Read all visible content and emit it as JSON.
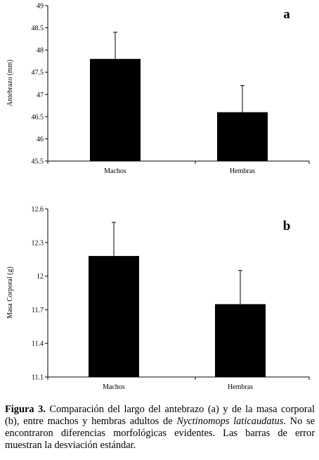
{
  "chart_data": [
    {
      "type": "bar",
      "panel_label": "a",
      "categories": [
        "Machos",
        "Hembras"
      ],
      "values": [
        47.8,
        46.6
      ],
      "error": [
        0.6,
        0.6
      ],
      "ylabel": "Antebrazo (mm)",
      "ylim": [
        45.5,
        49
      ],
      "yticks": [
        "45.5",
        "46",
        "46.5",
        "47",
        "47.5",
        "48",
        "48.5",
        "49"
      ],
      "grid": false,
      "bar_color": "#000000"
    },
    {
      "type": "bar",
      "panel_label": "b",
      "categories": [
        "Machos",
        "Hembras"
      ],
      "values": [
        12.18,
        11.75
      ],
      "error": [
        0.3,
        0.3
      ],
      "ylabel": "Masa Corporal (g)",
      "ylim": [
        11.1,
        12.6
      ],
      "yticks": [
        "11.1",
        "11.4",
        "11.7",
        "12",
        "12.3",
        "12.6"
      ],
      "grid": false,
      "bar_color": "#000000"
    }
  ],
  "caption": {
    "label": "Figura 3.",
    "text_1": " Comparación del largo del antebrazo (a) y de la masa corporal (b), entre machos y hembras adultos de ",
    "species": "Nyctinomops laticaudatus",
    "text_2": ". No se encontraron diferencias morfológicas evidentes. Las barras de error muestran la desviación estándar."
  }
}
